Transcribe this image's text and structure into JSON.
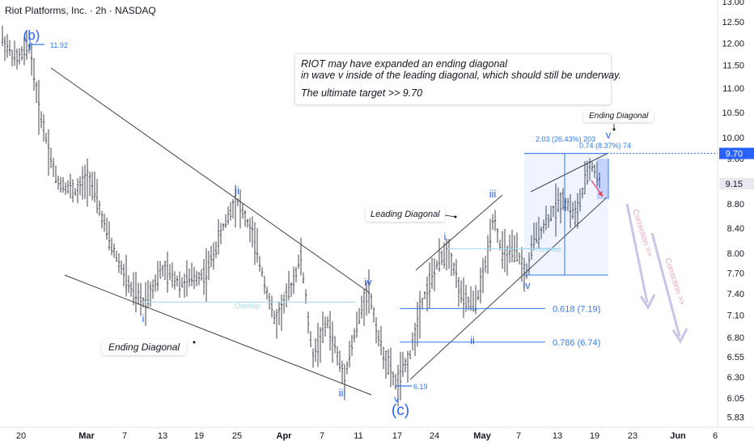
{
  "header": {
    "title": "Riot Platforms, Inc. · 2h · NASDAQ"
  },
  "note": {
    "line1": "RIOT may have expanded an ending diagonal",
    "line2": "in wave v inside of the leading diagonal, which should still be underway.",
    "line3": "The ultimate target  >> 9.70"
  },
  "callouts": {
    "ending_diagonal": "Ending Diagonal",
    "leading_diagonal": "Leading Diagonal",
    "ending_diagonal_small": "Ending Diagonal"
  },
  "colors": {
    "wave_label": "#2962ff",
    "fib_line": "#3179f5",
    "overlap": "#a8dcef",
    "target": "#2962ff",
    "correction_arrow": "#c9c4e8",
    "correction_text": "#f3a3bb",
    "candles": "#131722"
  },
  "chart_data": {
    "type": "candlestick",
    "y_axis": {
      "ticks": [
        "13.00",
        "12.50",
        "12.00",
        "11.50",
        "11.00",
        "10.50",
        "10.00",
        "9.60",
        "9.15",
        "8.80",
        "8.40",
        "8.00",
        "7.70",
        "7.40",
        "7.10",
        "6.80",
        "6.55",
        "6.30",
        "6.05",
        "5.83"
      ],
      "ylim": [
        5.76,
        13.1
      ],
      "scale": "log"
    },
    "x_axis": {
      "ticks": [
        "20",
        "Mar",
        "7",
        "13",
        "19",
        "25",
        "Apr",
        "7",
        "11",
        "17",
        "24",
        "May",
        "7",
        "13",
        "19",
        "23",
        "Jun",
        "6"
      ]
    },
    "price_labels": {
      "current": "9.15",
      "target": "9.70"
    },
    "price_notes": {
      "b_high": "11.92",
      "c_low": "6.19"
    },
    "wave_labels": [
      "(b)",
      "i",
      "ii",
      "iii",
      "iv",
      "v",
      "(c)",
      "i",
      "ii",
      "iii",
      "iv",
      "v"
    ],
    "fib_levels": [
      {
        "label": "0.618 (7.19)",
        "value": 7.19
      },
      {
        "label": "0.786 (6.74)",
        "value": 6.74
      }
    ],
    "overlap_labels": [
      "Overlap",
      "Overlap"
    ],
    "measure": {
      "top": "2.03 (26.43%) 203",
      "sub": "0.74 (8.37%) 74"
    },
    "correction_labels": [
      "Correction >>",
      "Correction >>"
    ]
  }
}
